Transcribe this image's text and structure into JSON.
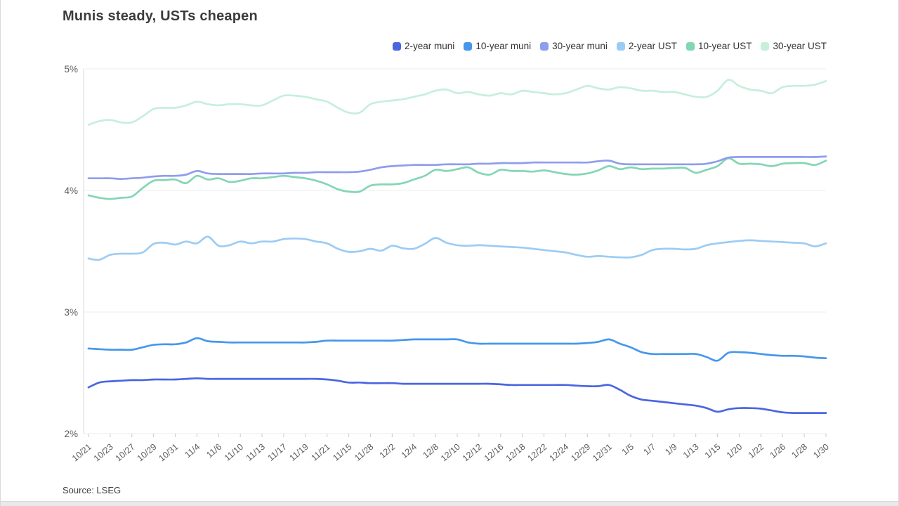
{
  "card": {
    "title": "Munis steady, USTs cheapen",
    "source": "Source: LSEG"
  },
  "chart_data": {
    "type": "line",
    "title": "Munis steady, USTs cheapen",
    "unit": "percent yield",
    "grid": "horizontal",
    "legend_position": "top-right",
    "y_min": 2,
    "y_max": 5,
    "y_tick_labels": [
      "5%",
      "4%",
      "3%",
      "2%"
    ],
    "x_labels": [
      "10/21",
      "10/23",
      "10/27",
      "10/29",
      "10/31",
      "11/4",
      "11/6",
      "11/10",
      "11/13",
      "11/17",
      "11/19",
      "11/21",
      "11/15",
      "11/28",
      "12/2",
      "12/4",
      "12/8",
      "12/10",
      "12/12",
      "12/16",
      "12/18",
      "12/22",
      "12/24",
      "12/29",
      "12/31",
      "1/5",
      "1/7",
      "1/9",
      "1/13",
      "1/15",
      "1/20",
      "1/22",
      "1/26",
      "1/28",
      "1/30"
    ],
    "points_per_label": 2,
    "series": [
      {
        "name": "2-year muni",
        "color": "#4a66e0",
        "values": [
          2.38,
          2.42,
          2.43,
          2.435,
          2.44,
          2.44,
          2.445,
          2.445,
          2.445,
          2.45,
          2.455,
          2.45,
          2.45,
          2.45,
          2.45,
          2.45,
          2.45,
          2.45,
          2.45,
          2.45,
          2.45,
          2.45,
          2.445,
          2.435,
          2.42,
          2.42,
          2.415,
          2.415,
          2.415,
          2.41,
          2.41,
          2.41,
          2.41,
          2.41,
          2.41,
          2.41,
          2.41,
          2.41,
          2.405,
          2.4,
          2.4,
          2.4,
          2.4,
          2.4,
          2.4,
          2.395,
          2.39,
          2.39,
          2.4,
          2.36,
          2.31,
          2.28,
          2.27,
          2.26,
          2.25,
          2.24,
          2.23,
          2.21,
          2.18,
          2.2,
          2.21,
          2.21,
          2.205,
          2.19,
          2.175,
          2.17,
          2.17,
          2.17,
          2.17
        ]
      },
      {
        "name": "10-year muni",
        "color": "#4697ec",
        "values": [
          2.7,
          2.695,
          2.69,
          2.69,
          2.69,
          2.71,
          2.73,
          2.735,
          2.735,
          2.75,
          2.785,
          2.76,
          2.755,
          2.75,
          2.75,
          2.75,
          2.75,
          2.75,
          2.75,
          2.75,
          2.75,
          2.755,
          2.765,
          2.765,
          2.765,
          2.765,
          2.765,
          2.765,
          2.765,
          2.77,
          2.775,
          2.775,
          2.775,
          2.775,
          2.775,
          2.75,
          2.74,
          2.74,
          2.74,
          2.74,
          2.74,
          2.74,
          2.74,
          2.74,
          2.74,
          2.74,
          2.745,
          2.755,
          2.775,
          2.74,
          2.71,
          2.67,
          2.655,
          2.655,
          2.655,
          2.655,
          2.655,
          2.63,
          2.6,
          2.665,
          2.67,
          2.665,
          2.655,
          2.645,
          2.64,
          2.64,
          2.635,
          2.625,
          2.62
        ]
      },
      {
        "name": "30-year muni",
        "color": "#8f9ded",
        "values": [
          4.1,
          4.1,
          4.1,
          4.095,
          4.1,
          4.105,
          4.115,
          4.12,
          4.12,
          4.13,
          4.16,
          4.14,
          4.135,
          4.135,
          4.135,
          4.135,
          4.14,
          4.14,
          4.14,
          4.145,
          4.145,
          4.15,
          4.15,
          4.15,
          4.15,
          4.155,
          4.17,
          4.19,
          4.2,
          4.205,
          4.21,
          4.21,
          4.21,
          4.215,
          4.215,
          4.215,
          4.22,
          4.22,
          4.225,
          4.225,
          4.225,
          4.23,
          4.23,
          4.23,
          4.23,
          4.23,
          4.23,
          4.24,
          4.245,
          4.22,
          4.215,
          4.215,
          4.215,
          4.215,
          4.215,
          4.215,
          4.215,
          4.22,
          4.24,
          4.27,
          4.275,
          4.275,
          4.275,
          4.275,
          4.275,
          4.275,
          4.275,
          4.275,
          4.28
        ]
      },
      {
        "name": "2-year UST",
        "color": "#9cccf4",
        "values": [
          3.44,
          3.43,
          3.47,
          3.48,
          3.48,
          3.49,
          3.56,
          3.57,
          3.555,
          3.58,
          3.565,
          3.62,
          3.545,
          3.55,
          3.58,
          3.565,
          3.58,
          3.58,
          3.6,
          3.605,
          3.6,
          3.58,
          3.565,
          3.52,
          3.495,
          3.5,
          3.52,
          3.505,
          3.545,
          3.525,
          3.52,
          3.56,
          3.61,
          3.57,
          3.55,
          3.545,
          3.55,
          3.545,
          3.54,
          3.535,
          3.53,
          3.52,
          3.51,
          3.5,
          3.49,
          3.47,
          3.455,
          3.46,
          3.455,
          3.45,
          3.45,
          3.47,
          3.51,
          3.52,
          3.52,
          3.515,
          3.52,
          3.55,
          3.565,
          3.575,
          3.585,
          3.59,
          3.585,
          3.58,
          3.575,
          3.57,
          3.565,
          3.54,
          3.565
        ]
      },
      {
        "name": "10-year UST",
        "color": "#83d6b4",
        "values": [
          3.96,
          3.94,
          3.93,
          3.94,
          3.95,
          4.02,
          4.08,
          4.085,
          4.09,
          4.06,
          4.12,
          4.09,
          4.1,
          4.07,
          4.08,
          4.1,
          4.1,
          4.11,
          4.12,
          4.11,
          4.1,
          4.08,
          4.05,
          4.01,
          3.99,
          3.99,
          4.04,
          4.05,
          4.05,
          4.06,
          4.09,
          4.12,
          4.17,
          4.16,
          4.175,
          4.19,
          4.145,
          4.13,
          4.17,
          4.16,
          4.16,
          4.155,
          4.165,
          4.15,
          4.135,
          4.13,
          4.14,
          4.165,
          4.2,
          4.175,
          4.19,
          4.175,
          4.18,
          4.18,
          4.185,
          4.185,
          4.145,
          4.17,
          4.2,
          4.265,
          4.22,
          4.22,
          4.215,
          4.2,
          4.22,
          4.225,
          4.225,
          4.21,
          4.245
        ]
      },
      {
        "name": "30-year UST",
        "color": "#c6efdc",
        "values": [
          4.54,
          4.57,
          4.58,
          4.56,
          4.56,
          4.61,
          4.67,
          4.68,
          4.68,
          4.7,
          4.73,
          4.71,
          4.7,
          4.71,
          4.71,
          4.7,
          4.7,
          4.74,
          4.78,
          4.78,
          4.77,
          4.75,
          4.73,
          4.68,
          4.64,
          4.64,
          4.71,
          4.73,
          4.74,
          4.75,
          4.77,
          4.79,
          4.82,
          4.83,
          4.8,
          4.81,
          4.79,
          4.78,
          4.8,
          4.79,
          4.82,
          4.81,
          4.8,
          4.79,
          4.8,
          4.83,
          4.86,
          4.84,
          4.83,
          4.85,
          4.84,
          4.82,
          4.82,
          4.81,
          4.81,
          4.79,
          4.77,
          4.77,
          4.82,
          4.91,
          4.86,
          4.83,
          4.82,
          4.8,
          4.85,
          4.86,
          4.86,
          4.87,
          4.9
        ]
      }
    ]
  }
}
